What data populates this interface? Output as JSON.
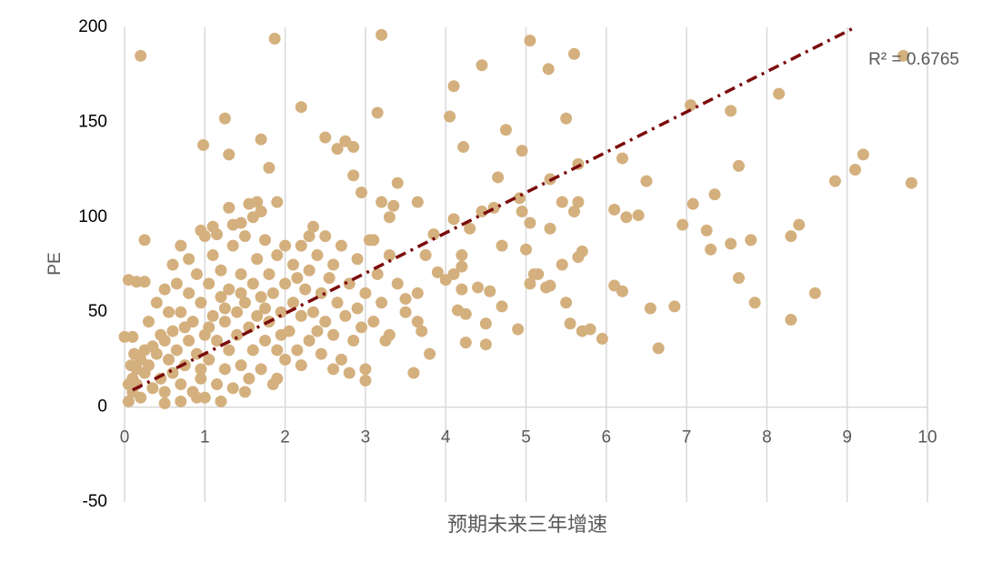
{
  "chart_data": {
    "type": "scatter",
    "x_label": "预期未来三年增速",
    "y_label": "PE",
    "annotation": "R² = 0.6765",
    "color": "#d4b07e",
    "xlim": [
      0,
      10
    ],
    "xticks": [
      0,
      1,
      2,
      3,
      4,
      5,
      6,
      7,
      8,
      9,
      10
    ],
    "ylim": [
      -50,
      200
    ],
    "yticks": [
      -50,
      0,
      50,
      100,
      150,
      200
    ],
    "grid": "x",
    "x": [
      0.2,
      1.87,
      3.2,
      5.05,
      5.6,
      5.28,
      4.45,
      4.1,
      8.15,
      9.7,
      7.05,
      7.55,
      5.5,
      4.05,
      1.25,
      3.15,
      2.2,
      0.98,
      1.7,
      2.5,
      2.75,
      2.85,
      2.65,
      1.3,
      4.22,
      4.95,
      4.75,
      6.2,
      5.65,
      7.65,
      9.2,
      9.1,
      8.85,
      9.8,
      6.5,
      5.3,
      4.65,
      3.4,
      2.85,
      1.8,
      7.35,
      7.08,
      6.1,
      6.25,
      6.4,
      6.95,
      7.25,
      8.4,
      8.3,
      7.8,
      7.55,
      7.3,
      5.7,
      5.65,
      4.7,
      5,
      5.3,
      4.92,
      4.95,
      5.05,
      5.45,
      5.65,
      5.6,
      4.1,
      4.45,
      4.6,
      4.3,
      4.2,
      4.2,
      4.1,
      4,
      3.9,
      4.2,
      4.4,
      4.55,
      4.15,
      4.25,
      4.5,
      4.25,
      4.5,
      4.9,
      4.7,
      5.05,
      5.1,
      5.15,
      5.25,
      5.45,
      5.3,
      5.5,
      5.55,
      5.7,
      5.8,
      5.95,
      6.1,
      6.2,
      6.55,
      6.85,
      6.65,
      7.65,
      7.85,
      8.3,
      8.6,
      3.6,
      3.8,
      3.7,
      3.65,
      3.3,
      3.5,
      3.65,
      3.75,
      3.85,
      3.65,
      3.3,
      3.2,
      3.35,
      3.1,
      2.95,
      3,
      3,
      2,
      1.7,
      1.65,
      1.9,
      2.35,
      2.3,
      0.95,
      1.15,
      1.35,
      1.45,
      1.55,
      0.25,
      0.05,
      0.15,
      0.25,
      0,
      0.1,
      0.05,
      0.1,
      0.15,
      0.2,
      0.25,
      0.3,
      0.35,
      0.4,
      0.45,
      0.5,
      0.5,
      0.55,
      0.6,
      0.6,
      0.65,
      0.7,
      0.7,
      0.75,
      0.8,
      0.8,
      0.85,
      0.85,
      0.9,
      0.9,
      0.95,
      0.95,
      1,
      1,
      1.05,
      1.05,
      1.1,
      1.1,
      1.15,
      1.15,
      1.2,
      1.2,
      1.25,
      1.25,
      1.3,
      1.3,
      1.35,
      1.35,
      1.4,
      1.4,
      1.45,
      1.45,
      1.5,
      1.5,
      1.55,
      1.55,
      1.6,
      1.6,
      1.65,
      1.65,
      1.7,
      1.7,
      1.75,
      1.75,
      1.8,
      1.8,
      1.85,
      1.85,
      1.9,
      1.9,
      1.95,
      2,
      2,
      2.05,
      2.1,
      2.1,
      2.15,
      2.2,
      2.2,
      2.25,
      2.3,
      2.3,
      2.35,
      2.4,
      2.45,
      2.45,
      2.5,
      2.5,
      2.55,
      2.6,
      2.6,
      2.65,
      2.7,
      2.7,
      2.75,
      2.8,
      2.85,
      2.9,
      2.9,
      2.95,
      3,
      3.05,
      3.1,
      3.15,
      3.2,
      3.25,
      3.3,
      3.4,
      3.5,
      0.3,
      0.4,
      0.5,
      0.6,
      0.7,
      0.45,
      0.35,
      0.25,
      0.2,
      0.15,
      0.1,
      0.05,
      0.08,
      0.12,
      0.9,
      1.2,
      0.7,
      0.5,
      1.5,
      1,
      0.8,
      1.1,
      0.65,
      0.55,
      1.6,
      1.3,
      0.75,
      0.95,
      1.05,
      1.25,
      1.45,
      1.75,
      1.95,
      2.15,
      2.4,
      2.6,
      2.8,
      2.2,
      1.9
    ],
    "values": [
      185,
      194,
      196,
      193,
      186,
      178,
      180,
      169,
      165,
      185,
      159,
      156,
      152,
      153,
      152,
      155,
      158,
      138,
      141,
      142,
      140,
      137,
      136,
      133,
      137,
      135,
      146,
      131,
      128,
      127,
      133,
      125,
      119,
      118,
      119,
      120,
      121,
      118,
      122,
      126,
      112,
      107,
      104,
      100,
      101,
      96,
      93,
      96,
      90,
      88,
      86,
      83,
      82,
      79,
      85,
      83,
      94,
      110,
      103,
      97,
      108,
      108,
      103,
      99,
      103,
      105,
      94,
      80,
      74,
      70,
      67,
      71,
      62,
      63,
      61,
      51,
      49,
      44,
      34,
      33,
      41,
      53,
      65,
      70,
      70,
      63,
      75,
      64,
      55,
      44,
      40,
      41,
      36,
      64,
      61,
      52,
      53,
      31,
      68,
      55,
      46,
      60,
      18,
      28,
      40,
      45,
      38,
      57,
      60,
      80,
      91,
      108,
      100,
      108,
      106,
      88,
      113,
      20,
      14,
      85,
      103,
      108,
      108,
      95,
      90,
      93,
      91,
      96,
      97,
      107,
      88,
      67,
      66,
      66,
      37,
      37,
      3,
      8,
      12,
      5,
      18,
      22,
      10,
      28,
      15,
      35,
      8,
      25,
      40,
      18,
      30,
      12,
      50,
      22,
      35,
      60,
      8,
      45,
      28,
      70,
      15,
      55,
      38,
      5,
      65,
      25,
      48,
      80,
      12,
      35,
      58,
      72,
      20,
      45,
      30,
      62,
      85,
      10,
      50,
      38,
      70,
      22,
      55,
      90,
      15,
      42,
      65,
      30,
      78,
      48,
      20,
      58,
      88,
      35,
      45,
      70,
      12,
      60,
      30,
      80,
      50,
      25,
      65,
      40,
      75,
      55,
      30,
      85,
      48,
      62,
      35,
      72,
      50,
      80,
      28,
      60,
      45,
      90,
      68,
      38,
      75,
      55,
      25,
      85,
      48,
      65,
      35,
      78,
      52,
      42,
      60,
      88,
      45,
      70,
      55,
      35,
      80,
      65,
      50,
      45,
      55,
      62,
      75,
      85,
      38,
      32,
      30,
      25,
      20,
      15,
      12,
      22,
      28,
      5,
      3,
      3,
      2,
      8,
      90,
      78,
      95,
      65,
      50,
      100,
      105,
      42,
      20,
      42,
      52,
      60,
      52,
      38,
      68,
      40,
      20,
      18,
      22,
      15
    ],
    "trendline": {
      "x": [
        0.1,
        9.1
      ],
      "values": [
        9,
        200
      ],
      "color": "#7b0c0c",
      "style": "dash-dot"
    }
  }
}
